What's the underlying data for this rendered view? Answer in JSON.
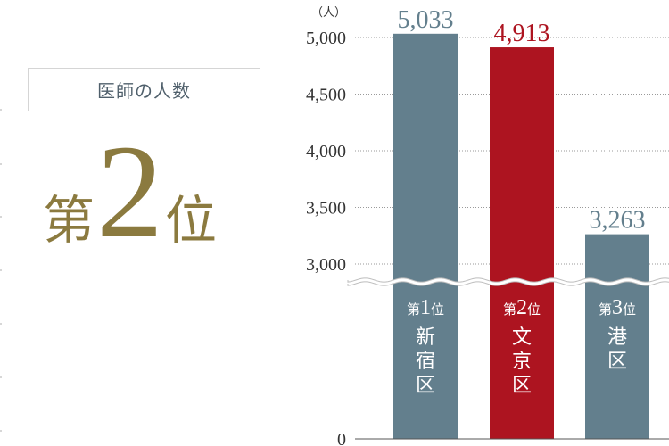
{
  "heading": {
    "label": "医師の人数",
    "rank_prefix": "第",
    "rank_number": "2",
    "rank_suffix": "位"
  },
  "chart_data": {
    "type": "bar",
    "unit_label": "（人）",
    "y_ticks": [
      "0",
      "3,000",
      "3,500",
      "4,000",
      "4,500",
      "5,000"
    ],
    "axis_break": true,
    "categories": [
      "新宿区",
      "文京区",
      "港区"
    ],
    "values": [
      5033,
      4913,
      3263
    ],
    "value_labels": [
      "5,033",
      "4,913",
      "3,263"
    ],
    "rank_labels": [
      {
        "prefix": "第",
        "number": "1",
        "suffix": "位"
      },
      {
        "prefix": "第",
        "number": "2",
        "suffix": "位"
      },
      {
        "prefix": "第",
        "number": "3",
        "suffix": "位"
      }
    ],
    "colors": {
      "default": "#637f8d",
      "highlight": "#ad1420"
    },
    "highlight_index": 1,
    "ylim": [
      0,
      5000
    ],
    "grid": true
  }
}
